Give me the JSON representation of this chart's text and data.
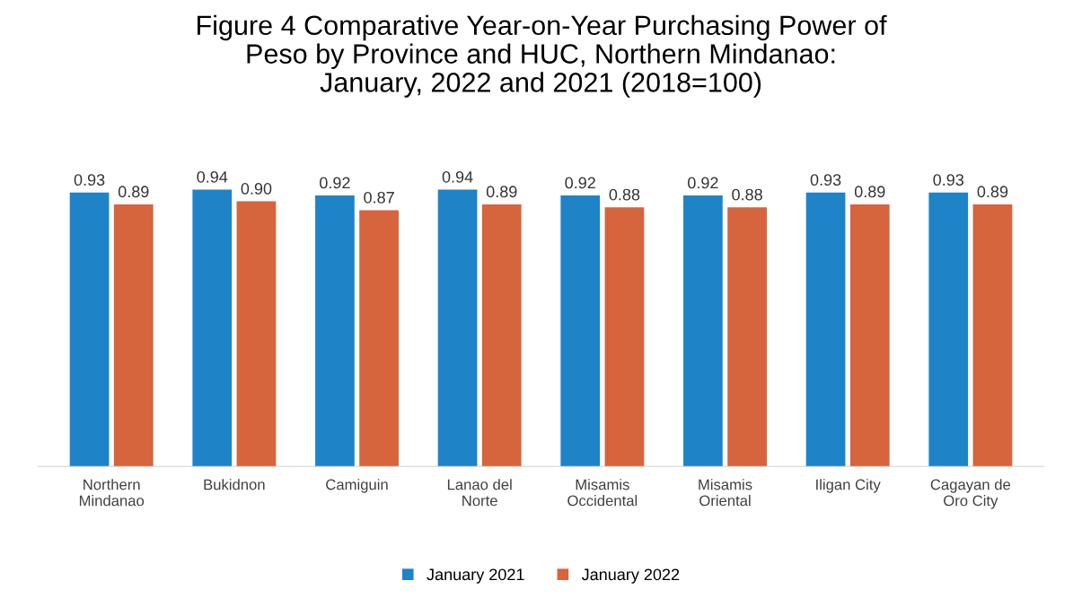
{
  "chart_data": {
    "type": "bar",
    "title": "Figure 4 Comparative Year-on-Year Purchasing Power of\nPeso by Province and HUC, Northern Mindanao:\nJanuary, 2022 and 2021 (2018=100)",
    "categories": [
      "Northern\nMindanao",
      "Bukidnon",
      "Camiguin",
      "Lanao del\nNorte",
      "Misamis\nOccidental",
      "Misamis\nOriental",
      "Iligan City",
      "Cagayan de\nOro City"
    ],
    "series": [
      {
        "name": "January 2021",
        "color": "#1f83c8",
        "values": [
          0.93,
          0.94,
          0.92,
          0.94,
          0.92,
          0.92,
          0.93,
          0.93
        ],
        "value_labels": [
          "0.93",
          "0.94",
          "0.92",
          "0.94",
          "0.92",
          "0.92",
          "0.93",
          "0.93"
        ]
      },
      {
        "name": "January 2022",
        "color": "#d6643c",
        "values": [
          0.89,
          0.9,
          0.87,
          0.89,
          0.88,
          0.88,
          0.89,
          0.89
        ],
        "value_labels": [
          "0.89",
          "0.90",
          "0.87",
          "0.89",
          "0.88",
          "0.88",
          "0.89",
          "0.89"
        ]
      }
    ],
    "grid": false,
    "legend": "bottom",
    "tick_labels": "x"
  }
}
